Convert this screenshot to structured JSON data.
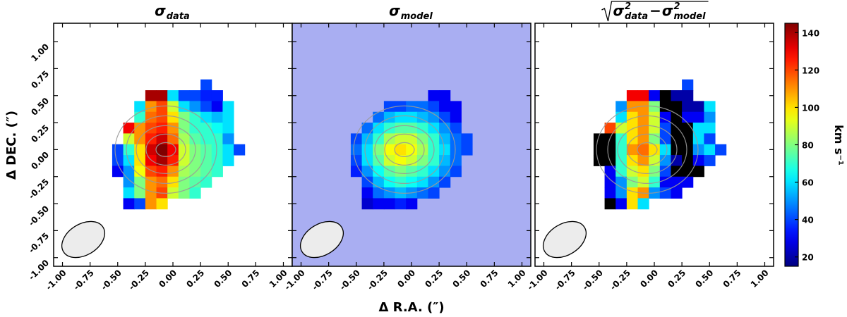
{
  "chart_data": {
    "type": "heatmap",
    "xlabel": "Δ R.A. (″)",
    "ylabel": "Δ DEC. (″)",
    "xlim": [
      -1.08,
      1.08
    ],
    "ylim": [
      -1.08,
      1.17
    ],
    "xticks": [
      {
        "value": -1,
        "label": "-1.00"
      },
      {
        "value": -0.75,
        "label": "-0.75"
      },
      {
        "value": -0.5,
        "label": "-0.50"
      },
      {
        "value": -0.25,
        "label": "-0.25"
      },
      {
        "value": 0,
        "label": "0.00"
      },
      {
        "value": 0.25,
        "label": "0.25"
      },
      {
        "value": 0.5,
        "label": "0.50"
      },
      {
        "value": 0.75,
        "label": "0.75"
      },
      {
        "value": 1,
        "label": "1.00"
      }
    ],
    "yticks": [
      {
        "value": -1,
        "label": "-1.00"
      },
      {
        "value": -0.75,
        "label": "-0.75"
      },
      {
        "value": -0.5,
        "label": "-0.50"
      },
      {
        "value": -0.25,
        "label": "-0.25"
      },
      {
        "value": 0,
        "label": "0.00"
      },
      {
        "value": 0.25,
        "label": "0.25"
      },
      {
        "value": 0.5,
        "label": "0.50"
      },
      {
        "value": 0.75,
        "label": "0.75"
      },
      {
        "value": 1,
        "label": "1.00"
      }
    ],
    "colormap": "jet",
    "clim": [
      15,
      145
    ],
    "under_color": "#000000",
    "colorbar_ticks": [
      20,
      40,
      60,
      80,
      100,
      120,
      140
    ],
    "colorbar_label": "km s⁻¹",
    "x": [
      -0.6,
      -0.5,
      -0.4,
      -0.3,
      -0.2,
      -0.1,
      0,
      0.1,
      0.2,
      0.3,
      0.4,
      0.5,
      0.6
    ],
    "y": [
      0.6,
      0.5,
      0.4,
      0.3,
      0.2,
      0.1,
      0,
      -0.1,
      -0.2,
      -0.3,
      -0.4,
      -0.5,
      -0.6
    ],
    "panels": [
      {
        "title": [
          "σ",
          {
            "sub": "data"
          }
        ],
        "title_sqrt": false,
        "values": [
          [
            null,
            null,
            null,
            null,
            null,
            null,
            null,
            null,
            null,
            40,
            null,
            null,
            null
          ],
          [
            null,
            null,
            null,
            null,
            140,
            140,
            60,
            40,
            40,
            35,
            35,
            null,
            null
          ],
          [
            null,
            null,
            null,
            60,
            110,
            120,
            90,
            60,
            50,
            40,
            30,
            60,
            null
          ],
          [
            null,
            null,
            null,
            70,
            115,
            120,
            100,
            80,
            70,
            60,
            55,
            60,
            null
          ],
          [
            null,
            null,
            130,
            110,
            120,
            125,
            110,
            80,
            70,
            70,
            65,
            60,
            null
          ],
          [
            null,
            null,
            90,
            110,
            125,
            135,
            115,
            85,
            75,
            70,
            70,
            50,
            null
          ],
          [
            null,
            40,
            70,
            100,
            135,
            145,
            130,
            90,
            80,
            75,
            70,
            60,
            40
          ],
          [
            null,
            40,
            60,
            100,
            130,
            140,
            125,
            90,
            80,
            75,
            70,
            60,
            null
          ],
          [
            null,
            30,
            50,
            95,
            120,
            125,
            110,
            85,
            80,
            75,
            70,
            null,
            null
          ],
          [
            null,
            null,
            50,
            80,
            110,
            115,
            100,
            80,
            75,
            70,
            null,
            null,
            null
          ],
          [
            null,
            null,
            60,
            80,
            110,
            120,
            90,
            80,
            70,
            null,
            null,
            null,
            null
          ],
          [
            null,
            null,
            30,
            40,
            110,
            100,
            null,
            null,
            null,
            null,
            null,
            null,
            null
          ],
          [
            null,
            null,
            null,
            null,
            null,
            null,
            null,
            null,
            null,
            null,
            null,
            null,
            null
          ]
        ]
      },
      {
        "title": [
          "σ",
          {
            "sub": "model"
          }
        ],
        "title_sqrt": false,
        "background_color": "#a9aef2",
        "values": [
          [
            null,
            null,
            null,
            null,
            null,
            null,
            null,
            null,
            null,
            null,
            null,
            null,
            null
          ],
          [
            null,
            null,
            null,
            null,
            null,
            null,
            null,
            null,
            30,
            30,
            null,
            null,
            null
          ],
          [
            null,
            null,
            null,
            null,
            40,
            40,
            45,
            45,
            40,
            30,
            30,
            null,
            null
          ],
          [
            null,
            null,
            null,
            45,
            55,
            60,
            60,
            55,
            50,
            40,
            30,
            null,
            null
          ],
          [
            null,
            null,
            45,
            60,
            70,
            75,
            75,
            70,
            60,
            50,
            40,
            null,
            null
          ],
          [
            null,
            40,
            55,
            70,
            85,
            90,
            90,
            80,
            70,
            55,
            45,
            40,
            null
          ],
          [
            null,
            45,
            60,
            80,
            95,
            100,
            95,
            85,
            70,
            60,
            45,
            40,
            null
          ],
          [
            null,
            40,
            60,
            75,
            90,
            95,
            90,
            80,
            70,
            55,
            45,
            null,
            null
          ],
          [
            null,
            35,
            50,
            65,
            75,
            80,
            75,
            70,
            60,
            50,
            40,
            null,
            null
          ],
          [
            null,
            null,
            40,
            55,
            65,
            70,
            65,
            60,
            50,
            40,
            null,
            null,
            null
          ],
          [
            null,
            null,
            30,
            45,
            50,
            55,
            50,
            45,
            40,
            null,
            null,
            null,
            null
          ],
          [
            null,
            null,
            25,
            30,
            30,
            35,
            30,
            null,
            null,
            null,
            null,
            null,
            null
          ],
          [
            null,
            null,
            null,
            null,
            null,
            null,
            null,
            null,
            null,
            null,
            null,
            null,
            null
          ]
        ]
      },
      {
        "title": [
          "σ",
          {
            "sup": "2",
            "sub": "data"
          },
          " − ",
          "σ",
          {
            "sup": "2",
            "sub": "model"
          }
        ],
        "title_sqrt": true,
        "values": [
          [
            null,
            null,
            null,
            null,
            null,
            null,
            null,
            null,
            null,
            40,
            null,
            null,
            null
          ],
          [
            null,
            null,
            null,
            null,
            130,
            130,
            30,
            0,
            20,
            20,
            null,
            null,
            null
          ],
          [
            null,
            null,
            null,
            50,
            110,
            110,
            80,
            0,
            0,
            20,
            20,
            60,
            null
          ],
          [
            null,
            null,
            null,
            60,
            100,
            110,
            90,
            30,
            0,
            30,
            30,
            50,
            null
          ],
          [
            null,
            null,
            120,
            90,
            100,
            110,
            90,
            40,
            0,
            0,
            60,
            60,
            null
          ],
          [
            null,
            0,
            0,
            70,
            100,
            110,
            80,
            40,
            0,
            0,
            60,
            40,
            null
          ],
          [
            null,
            0,
            0,
            70,
            110,
            115,
            100,
            60,
            0,
            0,
            50,
            60,
            40
          ],
          [
            null,
            0,
            0,
            70,
            100,
            110,
            90,
            50,
            20,
            0,
            30,
            40,
            null
          ],
          [
            null,
            null,
            30,
            70,
            90,
            100,
            80,
            40,
            0,
            0,
            0,
            null,
            null
          ],
          [
            null,
            null,
            30,
            50,
            80,
            90,
            70,
            30,
            30,
            30,
            null,
            null,
            null
          ],
          [
            null,
            null,
            30,
            50,
            100,
            110,
            50,
            40,
            30,
            null,
            null,
            null,
            null
          ],
          [
            null,
            null,
            0,
            30,
            100,
            60,
            null,
            null,
            null,
            null,
            null,
            null,
            null
          ],
          [
            null,
            null,
            null,
            null,
            null,
            null,
            null,
            null,
            null,
            null,
            null,
            null,
            null
          ]
        ]
      }
    ]
  }
}
